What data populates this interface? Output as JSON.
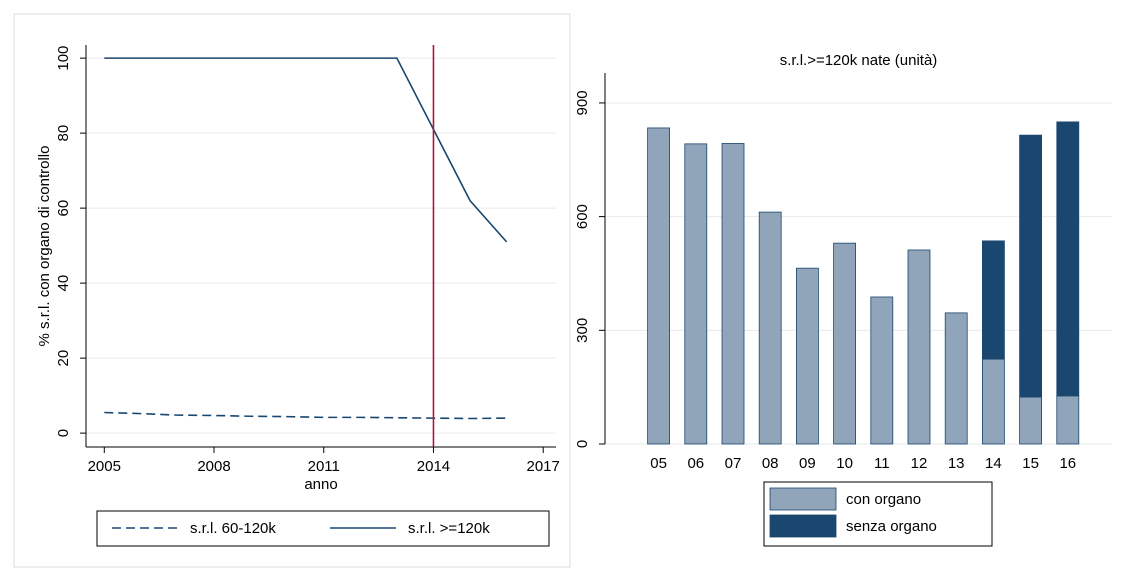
{
  "chart_data": [
    {
      "type": "line",
      "x_label": "anno",
      "y_label": "% s.r.l. con organo di controllo",
      "x": [
        2005,
        2006,
        2007,
        2008,
        2009,
        2010,
        2011,
        2012,
        2013,
        2014,
        2015,
        2016
      ],
      "series": [
        {
          "name": "s.r.l. 60-120k",
          "color": "#1a476f",
          "dashed": true,
          "values": [
            5.5,
            5.2,
            4.8,
            4.7,
            4.5,
            4.4,
            4.2,
            4.2,
            4.1,
            4.0,
            3.9,
            4.0
          ]
        },
        {
          "name": "s.r.l. >=120k",
          "color": "#1a476f",
          "dashed": false,
          "values": [
            100,
            100,
            100,
            100,
            100,
            100,
            100,
            100,
            100,
            81,
            62,
            51
          ]
        }
      ],
      "vline": 2014,
      "vline_color": "#b0153b",
      "xlim": [
        2004.5,
        2017.35
      ],
      "xticks": [
        2005,
        2008,
        2011,
        2014,
        2017
      ],
      "ylim": [
        -3.7,
        103.5
      ],
      "yticks": [
        0,
        20,
        40,
        60,
        80,
        100
      ],
      "grid": true
    },
    {
      "type": "bar",
      "stacked": true,
      "title": "s.r.l.>=120k nate (unità)",
      "categories": [
        "05",
        "06",
        "07",
        "08",
        "09",
        "10",
        "11",
        "12",
        "13",
        "14",
        "15",
        "16"
      ],
      "series": [
        {
          "name": "con organo",
          "color": "#90a4ba",
          "values": [
            834,
            792,
            793,
            612,
            464,
            530,
            388,
            512,
            346,
            224,
            124,
            127
          ]
        },
        {
          "name": "senza organo",
          "color": "#1a476f",
          "values": [
            0,
            0,
            0,
            0,
            0,
            0,
            0,
            0,
            0,
            312,
            691,
            723
          ]
        }
      ],
      "ylim": [
        0,
        979
      ],
      "yticks": [
        0,
        300,
        600,
        900
      ],
      "grid": true
    }
  ]
}
